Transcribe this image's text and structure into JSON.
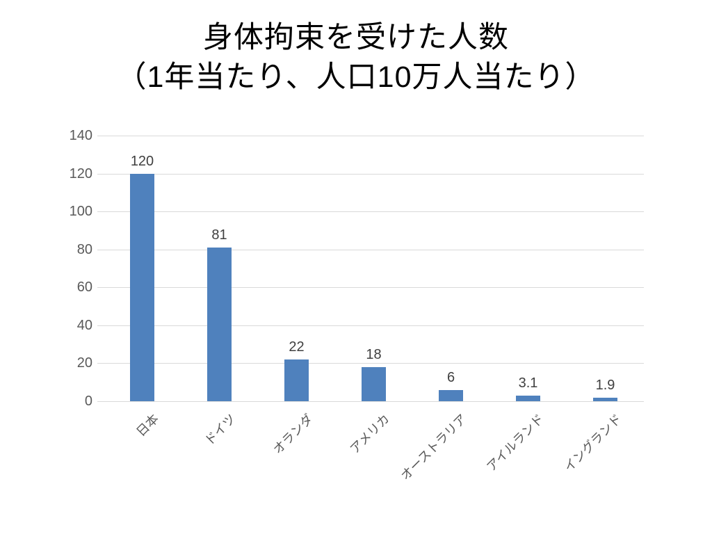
{
  "title": {
    "line1": "身体拘束を受けた人数",
    "line2": "（1年当たり、人口10万人当たり）"
  },
  "chart_data": {
    "type": "bar",
    "title": "身体拘束を受けた人数（1年当たり、人口10万人当たり）",
    "categories": [
      "日本",
      "ドイツ",
      "オランダ",
      "アメリカ",
      "オーストラリア",
      "アイルランド",
      "イングランド"
    ],
    "values": [
      120,
      81,
      22,
      18,
      6,
      3.1,
      1.9
    ],
    "value_labels": [
      "120",
      "81",
      "22",
      "18",
      "6",
      "3.1",
      "1.9"
    ],
    "xlabel": "",
    "ylabel": "",
    "ylim": [
      0,
      140
    ],
    "yticks": [
      0,
      20,
      40,
      60,
      80,
      100,
      120,
      140
    ],
    "grid": true,
    "legend": false,
    "colors": {
      "bar": "#4f81bd",
      "gridline": "#d9d9d9",
      "axis_text": "#595959",
      "value_label_text": "#3f3f3f",
      "title_text": "#000000"
    }
  }
}
